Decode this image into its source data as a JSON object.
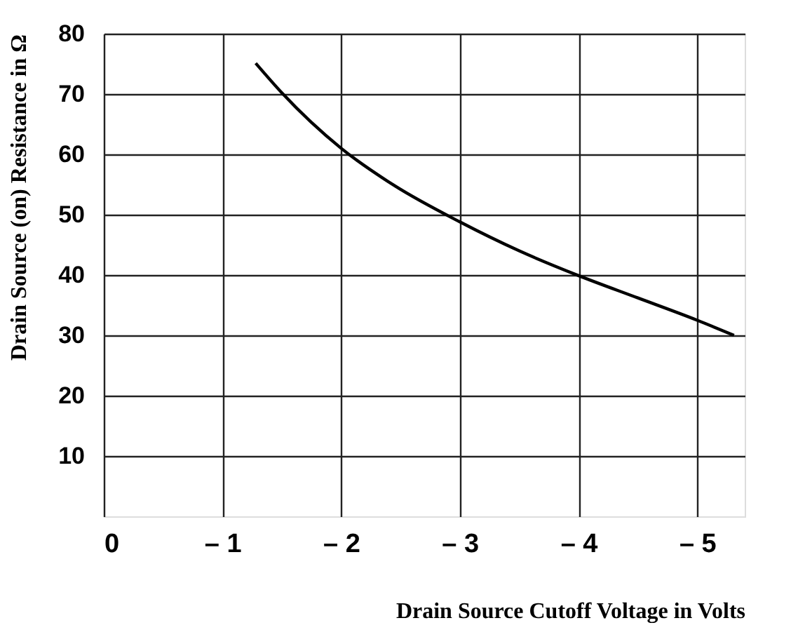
{
  "chart_data": {
    "type": "line",
    "xlabel": "Drain Source Cutoff Voltage in Volts",
    "ylabel": "Drain Source  (on) Resistance in Ω",
    "x": [
      -1.28,
      -1.5,
      -2,
      -2.45,
      -3,
      -3.5,
      -4,
      -4.5,
      -5,
      -5.31
    ],
    "series": [
      {
        "color": "#000000",
        "values": [
          75.1,
          70.2,
          61.0,
          54.8,
          48.8,
          44.0,
          39.9,
          36.2,
          32.5,
          30.0
        ]
      }
    ],
    "xlim": [
      0,
      -5.4
    ],
    "ylim": [
      0,
      80
    ],
    "xticks": [
      0,
      {
        "value": -1,
        "label": "– 1"
      },
      {
        "value": -2,
        "label": "– 2"
      },
      {
        "value": -3,
        "label": "– 3"
      },
      {
        "value": -4,
        "label": "– 4"
      },
      {
        "value": -5,
        "label": "– 5"
      }
    ],
    "yticks": [
      10,
      20,
      30,
      40,
      50,
      60,
      70,
      80
    ],
    "grid": true,
    "marker": "none",
    "line_style": "solid"
  }
}
